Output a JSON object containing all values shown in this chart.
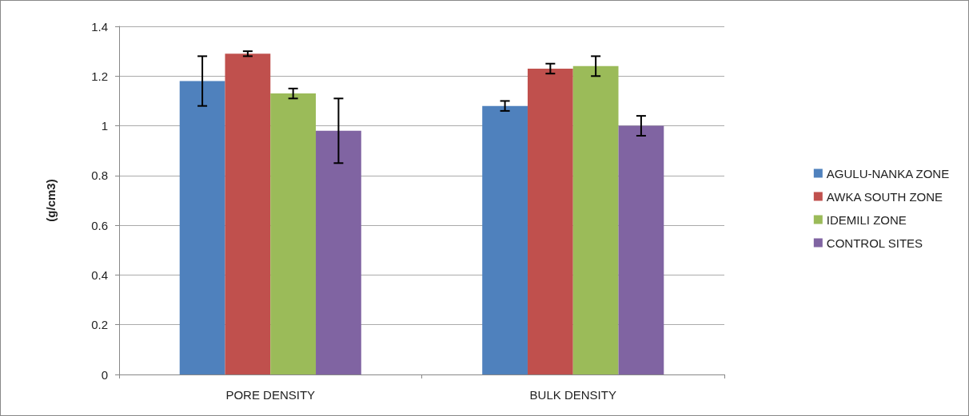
{
  "chart_data": {
    "type": "bar",
    "ylabel": "(g/cm3)",
    "categories": [
      "PORE DENSITY",
      "BULK DENSITY"
    ],
    "series": [
      {
        "name": "AGULU-NANKA ZONE",
        "color": "#4f81bd",
        "values": [
          1.18,
          1.08
        ],
        "errors": [
          0.1,
          0.02
        ]
      },
      {
        "name": "AWKA SOUTH ZONE",
        "color": "#c0504d",
        "values": [
          1.29,
          1.23
        ],
        "errors": [
          0.01,
          0.02
        ]
      },
      {
        "name": "IDEMILI ZONE",
        "color": "#9bbb59",
        "values": [
          1.13,
          1.24
        ],
        "errors": [
          0.02,
          0.04
        ]
      },
      {
        "name": "CONTROL SITES",
        "color": "#8064a2",
        "values": [
          0.98,
          1.0
        ],
        "errors": [
          0.13,
          0.04
        ]
      }
    ],
    "ylim": [
      0,
      1.4
    ],
    "yticks": [
      0,
      0.2,
      0.4,
      0.6,
      0.8,
      1,
      1.2,
      1.4
    ],
    "grid": "y",
    "legend": "right"
  }
}
